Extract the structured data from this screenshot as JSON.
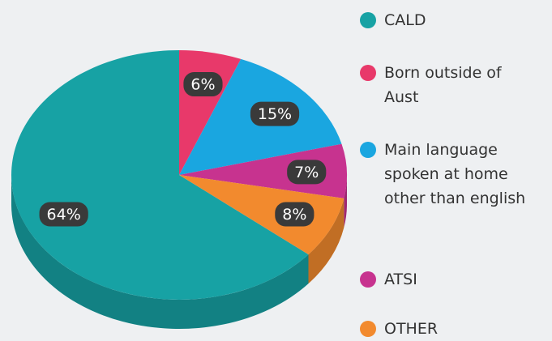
{
  "chart_data": {
    "type": "pie",
    "categories": [
      "CALD",
      "Born outside of Aust",
      "Main language spoken at home other than english",
      "ATSI",
      "OTHER"
    ],
    "values": [
      64,
      6,
      15,
      7,
      8
    ],
    "value_labels": [
      "64%",
      "6%",
      "15%",
      "7%",
      "8%"
    ],
    "colors": [
      "#17a2a4",
      "#e8396a",
      "#1aa6e0",
      "#c7338f",
      "#f28a2e"
    ],
    "legend": "right"
  }
}
